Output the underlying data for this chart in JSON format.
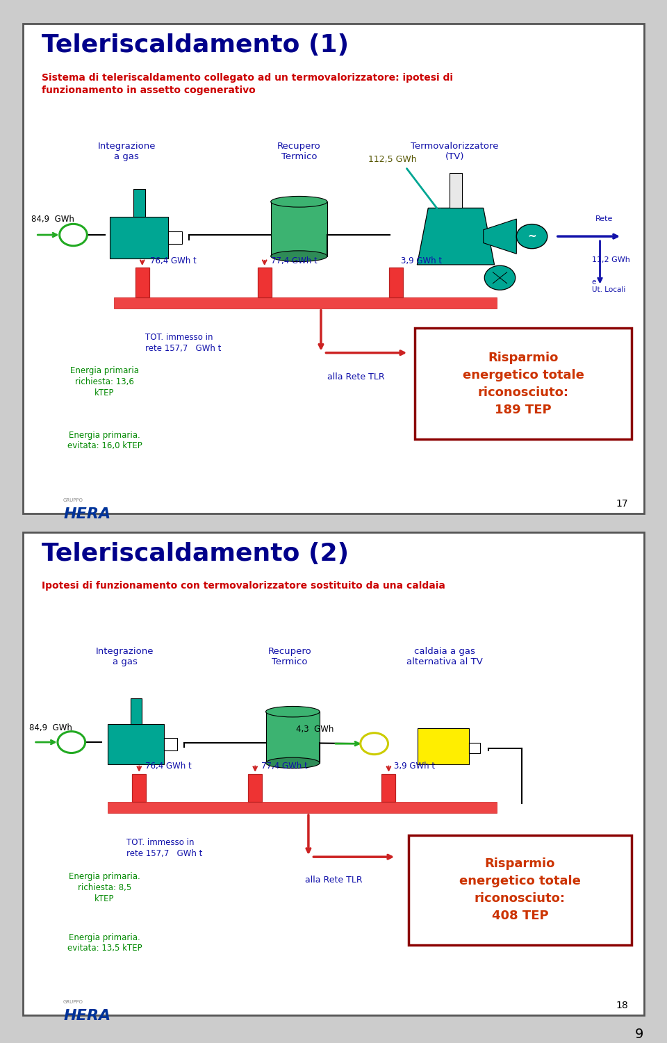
{
  "slide1": {
    "title": "Teleriscaldamento (1)",
    "subtitle": "Sistema di teleriscaldamento collegato ad un termovalorizzatore: ipotesi di\nfunzionamento in assetto cogenerativo",
    "box1_label": "Integrazione\na gas",
    "box2_label": "Recupero\nTermico",
    "box3_label": "Termovalorizzatore\n(TV)",
    "gwh_left": "84,9  GWh",
    "gwh_top": "112,5 GWh",
    "gwh_right_top": "Rete",
    "gwh_right_val": "11,2 GWh",
    "gwh_right_sub": "e\nUt. Locali",
    "label1": "76,4 GWh t",
    "label2": "77,4 GWh t",
    "label3": "3,9 GWh t",
    "tot_label": "TOT. immesso in\nrete 157,7   GWh t",
    "rete_label": "alla Rete TLR",
    "ep_richiesta": "Energia primaria\nrichiesta: 13,6\nkTEP",
    "ep_evitata": "Energia primaria.\nevitata: 16,0 kTEP",
    "risparmio": "Risparmio\nenergetico totale\nriconosciuto:\n189 TEP",
    "page_num": "17"
  },
  "slide2": {
    "title": "Teleriscaldamento (2)",
    "subtitle": "Ipotesi di funzionamento con termovalorizzatore sostituito da una caldaia",
    "box1_label": "Integrazione\na gas",
    "box2_label": "Recupero\nTermico",
    "box3_label": "caldaia a gas\nalternativa al TV",
    "gwh_left": "84,9  GWh",
    "gwh_mid": "4,3  GWh",
    "label1": "76,4 GWh t",
    "label2": "77,4 GWh t",
    "label3": "3,9 GWh t",
    "tot_label": "TOT. immesso in\nrete 157,7   GWh t",
    "rete_label": "alla Rete TLR",
    "ep_richiesta": "Energia primaria.\nrichiesta: 8,5\nkTEP",
    "ep_evitata": "Energia primaria.\nevitata: 13,5 kTEP",
    "risparmio": "Risparmio\nenergetico totale\nriconosciuto:\n408 TEP",
    "page_num": "18"
  },
  "colors": {
    "title": "#00008B",
    "subtitle": "#CC0000",
    "teal": "#00A693",
    "teal_dark": "#007A6E",
    "green_cyl": "#3CB371",
    "green_cyl_dark": "#2E8B57",
    "green_circle": "#22AA22",
    "red_valve": "#EE3333",
    "red_pipe": "#EE4444",
    "red_border": "#8B0000",
    "risparmio_text": "#CC3300",
    "blue_label": "#1111AA",
    "green_label": "#008800",
    "dark_navy": "#00008B",
    "yellow": "#FFEE00",
    "yellow_dark": "#CCCC00",
    "border_gray": "#666666",
    "pipe_gray": "#AAAAAA",
    "white": "#FFFFFF",
    "black": "#000000",
    "slide_border": "#555555",
    "page_bg": "#CCCCCC"
  }
}
